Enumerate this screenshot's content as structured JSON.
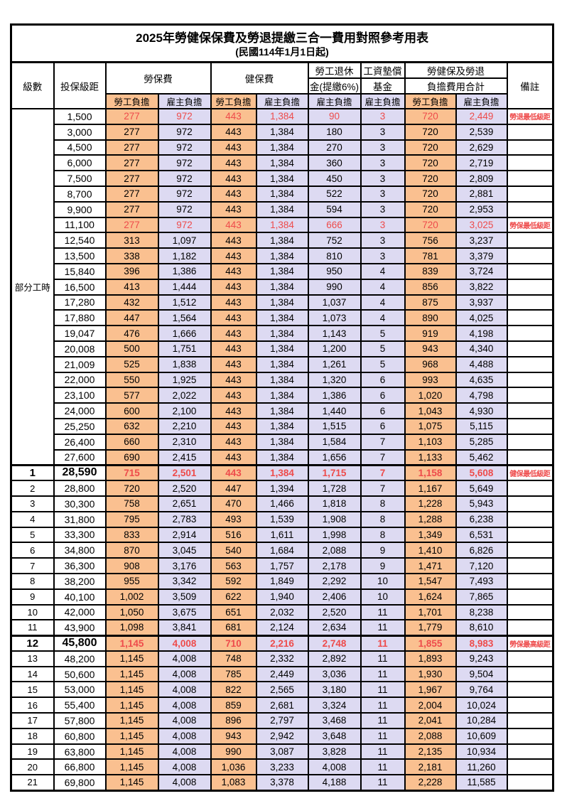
{
  "title": "2025年勞健保保費及勞退提繳三合一費用對照參考用表",
  "subtitle": "(民國114年1月1日起)",
  "header": {
    "level": "級數",
    "bracket": "投保級距",
    "labor_fee": "勞保費",
    "health_fee": "健保費",
    "pension_line1": "勞工退休",
    "pension_line2": "金(提繳6%)",
    "wage_fund_line1": "工資墊償",
    "wage_fund_line2": "基金",
    "total_line1": "勞健保及勞退",
    "total_line2": "負擔費用合計",
    "note": "備註",
    "employee": "勞工負擔",
    "employer": "雇主負擔"
  },
  "part_time_label": "部分工時",
  "part_time_rowspan": 23,
  "colors": {
    "employee_bg": "#FAC090",
    "employer_bg": "#DDDAF2",
    "red": "#EE4B4B"
  },
  "rows": [
    {
      "level": null,
      "bracket": "1,500",
      "v": [
        "277",
        "972",
        "443",
        "1,384",
        "90",
        "3",
        "720",
        "2,449"
      ],
      "note": "勞退最低級距",
      "red": true,
      "emph": false
    },
    {
      "level": null,
      "bracket": "3,000",
      "v": [
        "277",
        "972",
        "443",
        "1,384",
        "180",
        "3",
        "720",
        "2,539"
      ],
      "note": "",
      "red": false,
      "emph": false
    },
    {
      "level": null,
      "bracket": "4,500",
      "v": [
        "277",
        "972",
        "443",
        "1,384",
        "270",
        "3",
        "720",
        "2,629"
      ],
      "note": "",
      "red": false,
      "emph": false
    },
    {
      "level": null,
      "bracket": "6,000",
      "v": [
        "277",
        "972",
        "443",
        "1,384",
        "360",
        "3",
        "720",
        "2,719"
      ],
      "note": "",
      "red": false,
      "emph": false
    },
    {
      "level": null,
      "bracket": "7,500",
      "v": [
        "277",
        "972",
        "443",
        "1,384",
        "450",
        "3",
        "720",
        "2,809"
      ],
      "note": "",
      "red": false,
      "emph": false
    },
    {
      "level": null,
      "bracket": "8,700",
      "v": [
        "277",
        "972",
        "443",
        "1,384",
        "522",
        "3",
        "720",
        "2,881"
      ],
      "note": "",
      "red": false,
      "emph": false
    },
    {
      "level": null,
      "bracket": "9,900",
      "v": [
        "277",
        "972",
        "443",
        "1,384",
        "594",
        "3",
        "720",
        "2,953"
      ],
      "note": "",
      "red": false,
      "emph": false
    },
    {
      "level": null,
      "bracket": "11,100",
      "v": [
        "277",
        "972",
        "443",
        "1,384",
        "666",
        "3",
        "720",
        "3,025"
      ],
      "note": "勞保最低級距",
      "red": true,
      "emph": false
    },
    {
      "level": null,
      "bracket": "12,540",
      "v": [
        "313",
        "1,097",
        "443",
        "1,384",
        "752",
        "3",
        "756",
        "3,237"
      ],
      "note": "",
      "red": false,
      "emph": false
    },
    {
      "level": null,
      "bracket": "13,500",
      "v": [
        "338",
        "1,182",
        "443",
        "1,384",
        "810",
        "3",
        "781",
        "3,379"
      ],
      "note": "",
      "red": false,
      "emph": false
    },
    {
      "level": null,
      "bracket": "15,840",
      "v": [
        "396",
        "1,386",
        "443",
        "1,384",
        "950",
        "4",
        "839",
        "3,724"
      ],
      "note": "",
      "red": false,
      "emph": false
    },
    {
      "level": null,
      "bracket": "16,500",
      "v": [
        "413",
        "1,444",
        "443",
        "1,384",
        "990",
        "4",
        "856",
        "3,822"
      ],
      "note": "",
      "red": false,
      "emph": false
    },
    {
      "level": null,
      "bracket": "17,280",
      "v": [
        "432",
        "1,512",
        "443",
        "1,384",
        "1,037",
        "4",
        "875",
        "3,937"
      ],
      "note": "",
      "red": false,
      "emph": false
    },
    {
      "level": null,
      "bracket": "17,880",
      "v": [
        "447",
        "1,564",
        "443",
        "1,384",
        "1,073",
        "4",
        "890",
        "4,025"
      ],
      "note": "",
      "red": false,
      "emph": false
    },
    {
      "level": null,
      "bracket": "19,047",
      "v": [
        "476",
        "1,666",
        "443",
        "1,384",
        "1,143",
        "5",
        "919",
        "4,198"
      ],
      "note": "",
      "red": false,
      "emph": false
    },
    {
      "level": null,
      "bracket": "20,008",
      "v": [
        "500",
        "1,751",
        "443",
        "1,384",
        "1,200",
        "5",
        "943",
        "4,340"
      ],
      "note": "",
      "red": false,
      "emph": false
    },
    {
      "level": null,
      "bracket": "21,009",
      "v": [
        "525",
        "1,838",
        "443",
        "1,384",
        "1,261",
        "5",
        "968",
        "4,488"
      ],
      "note": "",
      "red": false,
      "emph": false
    },
    {
      "level": null,
      "bracket": "22,000",
      "v": [
        "550",
        "1,925",
        "443",
        "1,384",
        "1,320",
        "6",
        "993",
        "4,635"
      ],
      "note": "",
      "red": false,
      "emph": false
    },
    {
      "level": null,
      "bracket": "23,100",
      "v": [
        "577",
        "2,022",
        "443",
        "1,384",
        "1,386",
        "6",
        "1,020",
        "4,798"
      ],
      "note": "",
      "red": false,
      "emph": false
    },
    {
      "level": null,
      "bracket": "24,000",
      "v": [
        "600",
        "2,100",
        "443",
        "1,384",
        "1,440",
        "6",
        "1,043",
        "4,930"
      ],
      "note": "",
      "red": false,
      "emph": false
    },
    {
      "level": null,
      "bracket": "25,250",
      "v": [
        "632",
        "2,210",
        "443",
        "1,384",
        "1,515",
        "6",
        "1,075",
        "5,115"
      ],
      "note": "",
      "red": false,
      "emph": false
    },
    {
      "level": null,
      "bracket": "26,400",
      "v": [
        "660",
        "2,310",
        "443",
        "1,384",
        "1,584",
        "7",
        "1,103",
        "5,285"
      ],
      "note": "",
      "red": false,
      "emph": false
    },
    {
      "level": null,
      "bracket": "27,600",
      "v": [
        "690",
        "2,415",
        "443",
        "1,384",
        "1,656",
        "7",
        "1,133",
        "5,462"
      ],
      "note": "",
      "red": false,
      "emph": false
    },
    {
      "level": "1",
      "bracket": "28,590",
      "v": [
        "715",
        "2,501",
        "443",
        "1,384",
        "1,715",
        "7",
        "1,158",
        "5,608"
      ],
      "note": "健保最低級距",
      "red": true,
      "emph": true
    },
    {
      "level": "2",
      "bracket": "28,800",
      "v": [
        "720",
        "2,520",
        "447",
        "1,394",
        "1,728",
        "7",
        "1,167",
        "5,649"
      ],
      "note": "",
      "red": false,
      "emph": false
    },
    {
      "level": "3",
      "bracket": "30,300",
      "v": [
        "758",
        "2,651",
        "470",
        "1,466",
        "1,818",
        "8",
        "1,228",
        "5,943"
      ],
      "note": "",
      "red": false,
      "emph": false
    },
    {
      "level": "4",
      "bracket": "31,800",
      "v": [
        "795",
        "2,783",
        "493",
        "1,539",
        "1,908",
        "8",
        "1,288",
        "6,238"
      ],
      "note": "",
      "red": false,
      "emph": false
    },
    {
      "level": "5",
      "bracket": "33,300",
      "v": [
        "833",
        "2,914",
        "516",
        "1,611",
        "1,998",
        "8",
        "1,349",
        "6,531"
      ],
      "note": "",
      "red": false,
      "emph": false
    },
    {
      "level": "6",
      "bracket": "34,800",
      "v": [
        "870",
        "3,045",
        "540",
        "1,684",
        "2,088",
        "9",
        "1,410",
        "6,826"
      ],
      "note": "",
      "red": false,
      "emph": false
    },
    {
      "level": "7",
      "bracket": "36,300",
      "v": [
        "908",
        "3,176",
        "563",
        "1,757",
        "2,178",
        "9",
        "1,471",
        "7,120"
      ],
      "note": "",
      "red": false,
      "emph": false
    },
    {
      "level": "8",
      "bracket": "38,200",
      "v": [
        "955",
        "3,342",
        "592",
        "1,849",
        "2,292",
        "10",
        "1,547",
        "7,493"
      ],
      "note": "",
      "red": false,
      "emph": false
    },
    {
      "level": "9",
      "bracket": "40,100",
      "v": [
        "1,002",
        "3,509",
        "622",
        "1,940",
        "2,406",
        "10",
        "1,624",
        "7,865"
      ],
      "note": "",
      "red": false,
      "emph": false
    },
    {
      "level": "10",
      "bracket": "42,000",
      "v": [
        "1,050",
        "3,675",
        "651",
        "2,032",
        "2,520",
        "11",
        "1,701",
        "8,238"
      ],
      "note": "",
      "red": false,
      "emph": false
    },
    {
      "level": "11",
      "bracket": "43,900",
      "v": [
        "1,098",
        "3,841",
        "681",
        "2,124",
        "2,634",
        "11",
        "1,779",
        "8,610"
      ],
      "note": "",
      "red": false,
      "emph": false
    },
    {
      "level": "12",
      "bracket": "45,800",
      "v": [
        "1,145",
        "4,008",
        "710",
        "2,216",
        "2,748",
        "11",
        "1,855",
        "8,983"
      ],
      "note": "勞保最高級距",
      "red": true,
      "emph": true
    },
    {
      "level": "13",
      "bracket": "48,200",
      "v": [
        "1,145",
        "4,008",
        "748",
        "2,332",
        "2,892",
        "11",
        "1,893",
        "9,243"
      ],
      "note": "",
      "red": false,
      "emph": false
    },
    {
      "level": "14",
      "bracket": "50,600",
      "v": [
        "1,145",
        "4,008",
        "785",
        "2,449",
        "3,036",
        "11",
        "1,930",
        "9,504"
      ],
      "note": "",
      "red": false,
      "emph": false
    },
    {
      "level": "15",
      "bracket": "53,000",
      "v": [
        "1,145",
        "4,008",
        "822",
        "2,565",
        "3,180",
        "11",
        "1,967",
        "9,764"
      ],
      "note": "",
      "red": false,
      "emph": false
    },
    {
      "level": "16",
      "bracket": "55,400",
      "v": [
        "1,145",
        "4,008",
        "859",
        "2,681",
        "3,324",
        "11",
        "2,004",
        "10,024"
      ],
      "note": "",
      "red": false,
      "emph": false
    },
    {
      "level": "17",
      "bracket": "57,800",
      "v": [
        "1,145",
        "4,008",
        "896",
        "2,797",
        "3,468",
        "11",
        "2,041",
        "10,284"
      ],
      "note": "",
      "red": false,
      "emph": false
    },
    {
      "level": "18",
      "bracket": "60,800",
      "v": [
        "1,145",
        "4,008",
        "943",
        "2,942",
        "3,648",
        "11",
        "2,088",
        "10,609"
      ],
      "note": "",
      "red": false,
      "emph": false
    },
    {
      "level": "19",
      "bracket": "63,800",
      "v": [
        "1,145",
        "4,008",
        "990",
        "3,087",
        "3,828",
        "11",
        "2,135",
        "10,934"
      ],
      "note": "",
      "red": false,
      "emph": false
    },
    {
      "level": "20",
      "bracket": "66,800",
      "v": [
        "1,145",
        "4,008",
        "1,036",
        "3,233",
        "4,008",
        "11",
        "2,181",
        "11,260"
      ],
      "note": "",
      "red": false,
      "emph": false
    },
    {
      "level": "21",
      "bracket": "69,800",
      "v": [
        "1,145",
        "4,008",
        "1,083",
        "3,378",
        "4,188",
        "11",
        "2,228",
        "11,585"
      ],
      "note": "",
      "red": false,
      "emph": false
    }
  ]
}
